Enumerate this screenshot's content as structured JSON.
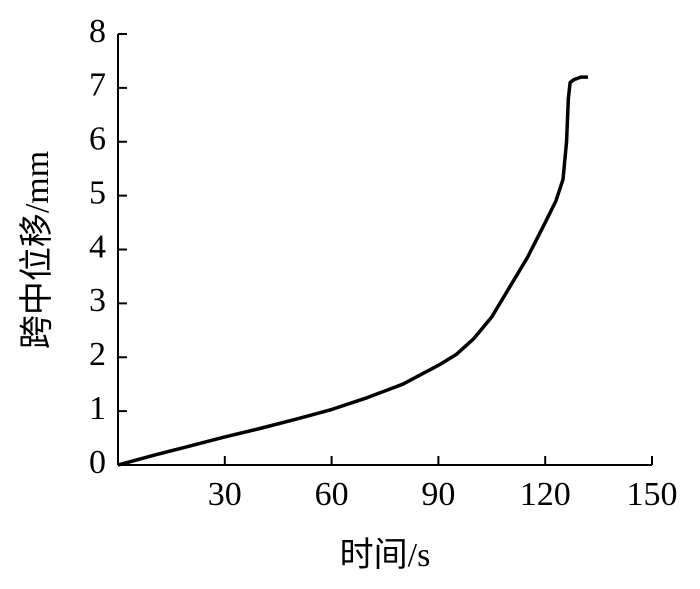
{
  "chart_data": {
    "type": "line",
    "x_label": "时间/s",
    "y_label": "跨中位移/mm",
    "xlim": [
      0,
      150
    ],
    "xticks": [
      30,
      60,
      90,
      120,
      150
    ],
    "ylim": [
      0,
      8
    ],
    "yticks": [
      0,
      1,
      2,
      3,
      4,
      5,
      6,
      7,
      8
    ],
    "x": [
      0,
      10,
      20,
      30,
      40,
      50,
      60,
      70,
      80,
      90,
      95,
      100,
      105,
      110,
      115,
      120,
      123,
      125,
      126,
      126.5,
      127,
      128,
      130,
      132
    ],
    "series": [
      {
        "color": "#000000",
        "values": [
          0,
          0.18,
          0.35,
          0.52,
          0.68,
          0.85,
          1.03,
          1.25,
          1.5,
          1.85,
          2.05,
          2.35,
          2.75,
          3.3,
          3.85,
          4.5,
          4.9,
          5.3,
          6.0,
          6.8,
          7.1,
          7.15,
          7.2,
          7.2
        ]
      }
    ]
  }
}
